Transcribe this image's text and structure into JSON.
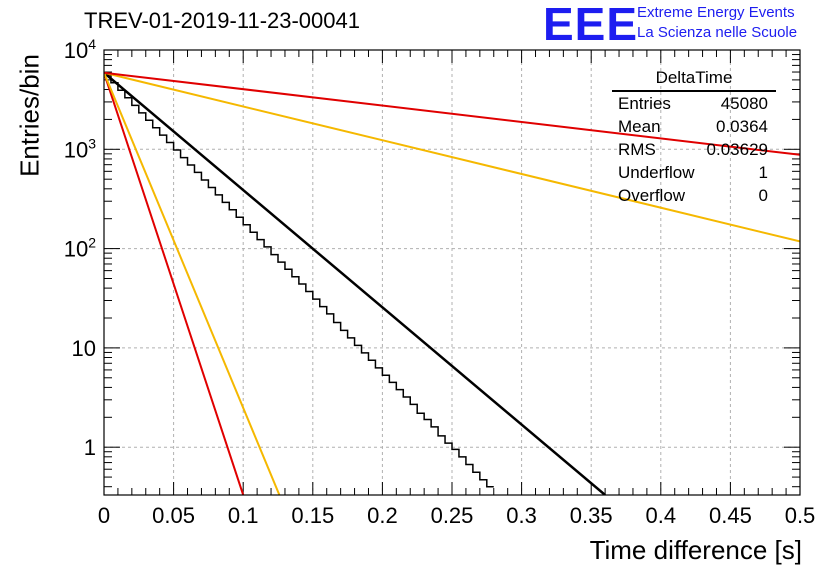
{
  "header": {
    "title": "TREV-01-2019-11-23-00041"
  },
  "logo": {
    "mark": "EEE",
    "line1": "Extreme Energy Events",
    "line2": "La Scienza nelle Scuole",
    "color": "#1d1df0"
  },
  "stats": {
    "title": "DeltaTime",
    "rows": [
      {
        "label": "Entries",
        "value": "45080"
      },
      {
        "label": "Mean",
        "value": "0.0364"
      },
      {
        "label": "RMS",
        "value": "0.03629"
      },
      {
        "label": "Underflow",
        "value": "1"
      },
      {
        "label": "Overflow",
        "value": "0"
      }
    ]
  },
  "chart_data": {
    "type": "line",
    "xlabel": "Time difference [s]",
    "ylabel": "Entries/bin",
    "xlim": [
      0,
      0.5
    ],
    "ylim": [
      0.33,
      10000
    ],
    "yscale": "log",
    "grid": true,
    "x_ticks": [
      "0",
      "0.05",
      "0.1",
      "0.15",
      "0.2",
      "0.25",
      "0.3",
      "0.35",
      "0.4",
      "0.45",
      "0.5"
    ],
    "y_ticks": [
      {
        "base": "1",
        "exp": "",
        "value": 1
      },
      {
        "base": "10",
        "exp": "",
        "value": 10
      },
      {
        "base": "10",
        "exp": "2",
        "value": 100
      },
      {
        "base": "10",
        "exp": "3",
        "value": 1000
      },
      {
        "base": "10",
        "exp": "4",
        "value": 10000
      }
    ],
    "histogram": {
      "bin_width": 0.005,
      "color": "#000000",
      "counts": [
        5600,
        4680,
        3930,
        3300,
        2770,
        2330,
        1960,
        1650,
        1390,
        1170,
        985,
        825,
        695,
        585,
        490,
        412,
        348,
        292,
        246,
        207,
        174,
        146,
        123,
        104,
        87,
        73,
        62,
        52,
        44,
        37,
        31,
        26,
        22,
        18,
        15,
        12.6,
        10.6,
        8.9,
        7.5,
        6.3,
        5.3,
        4.5,
        3.8,
        3.2,
        2.7,
        2.2,
        1.9,
        1.6,
        1.3,
        1.1,
        0.95,
        0.8,
        0.67,
        0.56,
        0.47,
        0.4
      ]
    },
    "series": [
      {
        "color": "#000000",
        "x": [
          0,
          0.36
        ],
        "y": [
          5900,
          0.33
        ]
      },
      {
        "color": "#e00000",
        "x": [
          0,
          0.1
        ],
        "y": [
          5900,
          0.33
        ]
      },
      {
        "color": "#f5b800",
        "x": [
          0,
          0.126
        ],
        "y": [
          5900,
          0.33
        ]
      },
      {
        "color": "#f5b800",
        "x": [
          0,
          0.5
        ],
        "y": [
          5900,
          118
        ]
      },
      {
        "color": "#e00000",
        "x": [
          0,
          0.5
        ],
        "y": [
          5900,
          880
        ]
      }
    ]
  }
}
